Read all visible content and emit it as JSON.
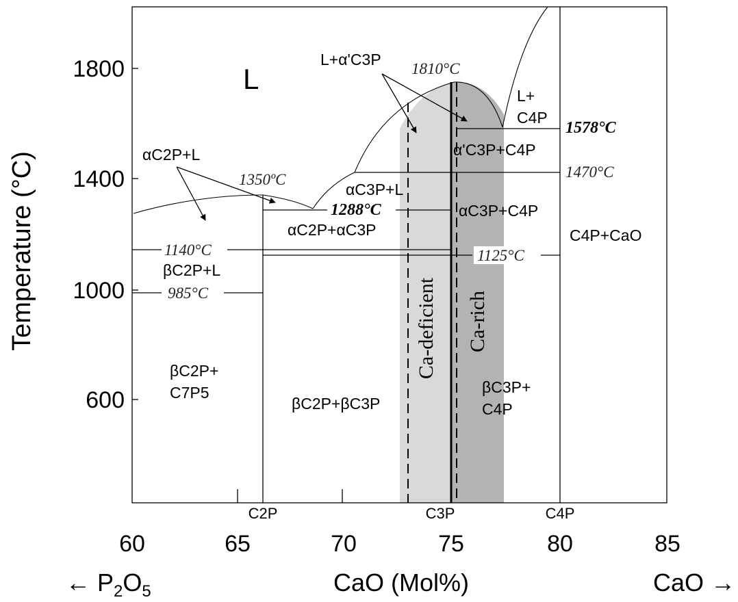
{
  "axes": {
    "ylabel": "Temperature (°C)",
    "xlabel": "CaO (Mol%)",
    "left_end": "← P",
    "left_sub": "2",
    "left_mid": "O",
    "left_sub2": "5",
    "right_end": "CaO →",
    "y_ticks": [
      "1800",
      "1400",
      "1000",
      "600"
    ],
    "x_ticks": [
      "60",
      "65",
      "70",
      "75",
      "80",
      "85"
    ],
    "compounds": [
      "C2P",
      "C3P",
      "C4P"
    ]
  },
  "regions": {
    "L": "L",
    "L_a_C3P": "L+α'C3P",
    "L_C4P_1": "L+",
    "L_C4P_2": "C4P",
    "aC2P_L": "αC2P+L",
    "aC3P_L": "αC3P+L",
    "a_C3P_C4P": "α'C3P+C4P",
    "aC3P_C4P": "αC3P+C4P",
    "aC2P_aC3P": "αC2P+αC3P",
    "bC2P_L": "βC2P+L",
    "C4P_CaO": "C4P+CaO",
    "bC2P_C7P5_1": "βC2P+",
    "bC2P_C7P5_2": "C7P5",
    "bC2P_bC3P": "βC2P+βC3P",
    "bC3P_C4P_1": "βC3P+",
    "bC3P_C4P_2": "C4P"
  },
  "temperatures": {
    "t1810": "1810°C",
    "t1578": "1578°C",
    "t1470": "1470°C",
    "t1350": "1350ºC",
    "t1288": "1288°C",
    "t1140": "1140°C",
    "t1125": "1125°C",
    "t985": "985°C"
  },
  "bands": {
    "deficient": "Ca-deficient",
    "rich": "Ca-rich",
    "deficient_color": "#d9d9d9",
    "rich_color": "#b3b3b3"
  }
}
